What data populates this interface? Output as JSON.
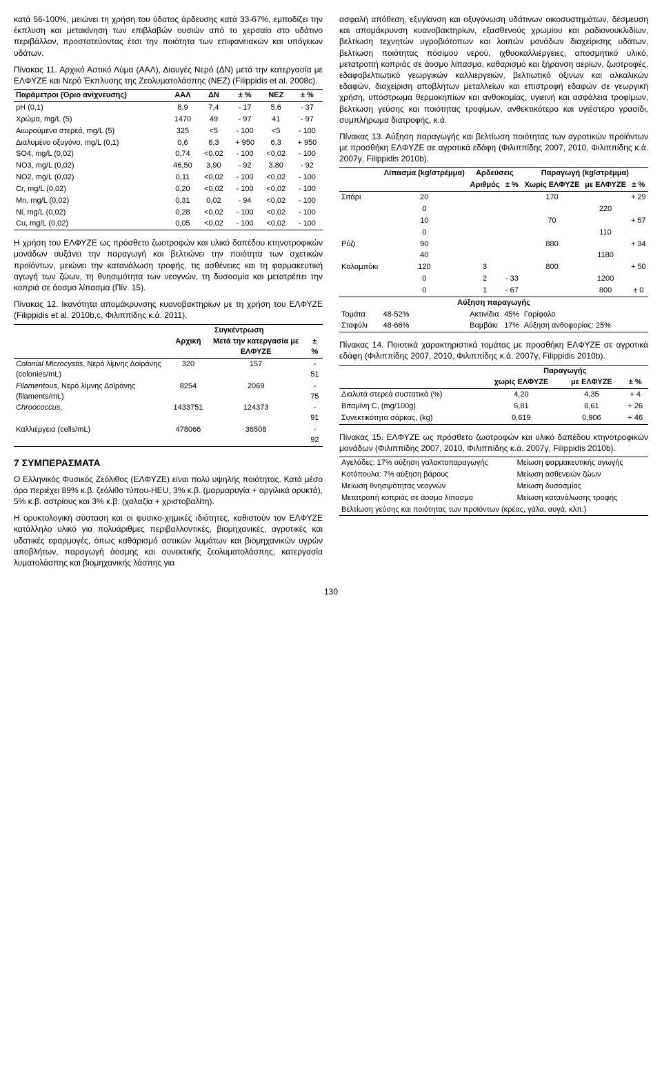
{
  "leftCol": {
    "para1": "κατά 56-100%, μειώνει τη χρήση του ύδατος άρδευσης κατά 33-67%, εμποδίζει την έκπλυση και μετακίνηση των επιβλαβών ουσιών από το χερσαίο στο υδάτινο περιβάλλον, προστατεύοντας έτσι την ποιότητα των επιφανειακών και υπόγειων υδάτων.",
    "table11_caption": "Πίνακας 11. Αρχικό Αστικό Λύμα (ΑΑΛ), Διαυγές Νερό (ΔΝ) μετά την κατεργασία με ΕΛΦΥΖΕ και Νερό Έκπλυσης της Ζεολυματολάσπης (ΝΕΖ) (Filippidis et al. 2008c).",
    "table11": {
      "head": [
        "Παράμετροι (Όριο ανίχνευσης)",
        "ΑΑΛ",
        "ΔΝ",
        "± %",
        "ΝΕΖ",
        "± %"
      ],
      "rows": [
        [
          "pH (0,1)",
          "8,9",
          "7,4",
          "- 17",
          "5,6",
          "- 37"
        ],
        [
          "Χρώμα, mg/L (5)",
          "1470",
          "49",
          "- 97",
          "41",
          "- 97"
        ],
        [
          "Αιωρούμενα στερεά, mg/L (5)",
          "325",
          "<5",
          "- 100",
          "<5",
          "- 100"
        ],
        [
          "Διαλυμένο οξυγόνο, mg/L (0,1)",
          "0,6",
          "6,3",
          "+ 950",
          "6,3",
          "+ 950"
        ],
        [
          "SO4, mg/L (0,02)",
          "0,74",
          "<0,02",
          "- 100",
          "<0,02",
          "- 100"
        ],
        [
          "NO3, mg/L (0,02)",
          "46,50",
          "3,90",
          "- 92",
          "3,80",
          "- 92"
        ],
        [
          "NO2, mg/L (0,02)",
          "0,11",
          "<0,02",
          "- 100",
          "<0,02",
          "- 100"
        ],
        [
          "Cr, mg/L (0,02)",
          "0,20",
          "<0,02",
          "- 100",
          "<0,02",
          "- 100"
        ],
        [
          "Mn, mg/L (0,02)",
          "0,31",
          "0,02",
          "- 94",
          "<0,02",
          "- 100"
        ],
        [
          "Ni, mg/L (0,02)",
          "0,28",
          "<0,02",
          "- 100",
          "<0,02",
          "- 100"
        ],
        [
          "Cu, mg/L (0,02)",
          "0,05",
          "<0,02",
          "- 100",
          "<0,02",
          "- 100"
        ]
      ]
    },
    "para2": "Η χρήση του ΕΛΦΥΖΕ ως πρόσθετο ζωοτροφών και υλικό δαπέδου κτηνοτροφικών μονάδων αυξάνει την παραγωγή και βελτιώνει την ποιότητα των σχετικών προϊόντων, μειώνει την κατανάλωση τροφής, τις ασθένειες και τη φαρμακευτική αγωγή των ζώων, τη θνησιμότητα των νεογνών, τη δυσοσμία και μετατρέπει την κοπριά σε άοσμο λίπασμα (Πίν. 15).",
    "table12_caption": "Πίνακας 12. Ικανότητα απομάκρυνσης κυανοβακτηρίων με τη χρήση του ΕΛΦΥΖΕ (Filippidis et al. 2010b,c, Φιλιππίδης κ.ά. 2011).",
    "table12": {
      "head_top": [
        "",
        "Συγκέντρωση",
        ""
      ],
      "head": [
        "",
        "Αρχική",
        "Μετά την κατεργασία με ΕΛΦΥΖΕ",
        "± %"
      ],
      "rows": [
        [
          "Colonial Microcystis, Νερό λίμνης Δοϊράνης (colonies/mL)",
          "320",
          "157",
          "- 51"
        ],
        [
          "Filamentous, Νερό λίμνης Δοϊράνης (filaments/mL)",
          "8254",
          "2069",
          "- 75"
        ],
        [
          "Chroococcus,",
          "1433751",
          "124373",
          "- 91"
        ],
        [
          "Καλλιέργεια (cells/mL)",
          "478066",
          "36508",
          "- 92"
        ]
      ]
    },
    "section_heading": "7   ΣΥΜΠΕΡΑΣΜΑΤΑ"
  },
  "rightCol": {
    "para1": "ασφαλή απόθεση, εξυγίανση και οξυγόνωση υδάτινων οικοσυστημάτων, δέσμευση και απομάκρυνση κυανοβακτηρίων, εξασθενούς χρωμίου και ραδιονουκλιδίων, βελτίωση τεχνητών υγροβιότοπων και λοιπών μονάδων διαχείρισης υδάτων, βελτίωση ποιότητας πόσιμου νερού, ιχθυοκαλλιέργειες, αποσμητικό υλικό, μετατροπή κοπριάς σε άοσμο λίπασμα, καθαρισμό και ξήρανση αερίων, ζωοτροφές, εδαφοβελτιωτικό γεωργικών καλλιεργειών, βελτιωτικό όξινων και αλκαλικών εδαφών, διαχείριση αποβλήτων μεταλλείων και επιστροφή εδαφών σε γεωργική χρήση, υπόστρωμα θερμοκηπίων και ανθοκομίας, υγιεινή και ασφάλεια τροφίμων, βελτίωση γεύσης και ποιότητας τροφίμων, ανθεκτικότερο και υγιέστερο γρασίδι, συμπλήρωμα διατροφής, κ.ά.",
    "table13_caption": "Πίνακας 13. Αύξηση παραγωγής και βελτίωση ποιότητας των αγροτικών προϊόντων με προσθήκη ΕΛΦΥΖΕ σε αγροτικά εδάφη (Φιλιππίδης 2007, 2010, Φιλιππίδης κ.ά. 2007γ, Filippidis 2010b).",
    "table13": {
      "head_top": [
        "",
        "Λίπασμα (kg/στρέμμα)",
        "Αρδεύσεις",
        "Παραγωγή (kg/στρέμμα)"
      ],
      "head": [
        "",
        "",
        "Αριθμός",
        "± %",
        "Χωρίς ΕΛΦΥΖΕ",
        "με ΕΛΦΥΖΕ",
        "± %"
      ],
      "blocks": [
        {
          "crop": "Σιτάρι",
          "rows": [
            [
              "20",
              "",
              "",
              "170",
              "",
              "+ 29"
            ],
            [
              "0",
              "",
              "",
              "",
              "220",
              ""
            ],
            [
              "10",
              "",
              "",
              "70",
              "",
              "+ 57"
            ],
            [
              "0",
              "",
              "",
              "",
              "110",
              ""
            ]
          ]
        },
        {
          "crop": "Ρύζι",
          "rows": [
            [
              "90",
              "",
              "",
              "880",
              "",
              "+ 34"
            ],
            [
              "40",
              "",
              "",
              "",
              "1180",
              ""
            ]
          ]
        },
        {
          "crop": "Καλαμπόκι",
          "rows": [
            [
              "120",
              "3",
              "",
              "800",
              "",
              "+ 50"
            ],
            [
              "0",
              "2",
              "- 33",
              "",
              "1200",
              ""
            ],
            [
              "0",
              "1",
              "- 67",
              "",
              "800",
              "± 0"
            ]
          ]
        }
      ],
      "aux_head": "Αύξηση παραγωγής",
      "aux_rows": [
        [
          "Τομάτα",
          "48-52%",
          "Ακτινίδια",
          "45%",
          "Γαρίφαλο"
        ],
        [
          "Σταφύλι",
          "48-66%",
          "Βαμβάκι",
          "17%",
          "Αύξηση ανθοφορίας: 25%"
        ]
      ]
    },
    "table14_caption": "Πίνακας 14. Ποιοτικά χαρακτηριστικά τομάτας με προσθήκη ΕΛΦΥΖΕ σε αγροτικά εδάφη (Φιλιππίδης 2007, 2010, Φιλιππίδης κ.ά. 2007γ, Filippidis 2010b).",
    "table14": {
      "head_top": "Παραγωγής",
      "head": [
        "",
        "χωρίς ΕΛΦΥΖΕ",
        "με ΕΛΦΥΖΕ",
        "± %"
      ],
      "rows": [
        [
          "Διαλυτά στερεά συστατικά (%)",
          "4,20",
          "4,35",
          "+ 4"
        ],
        [
          "Βιταμίνη C, (mg/100g)",
          "6,81",
          "8,61",
          "+ 26"
        ],
        [
          "Συνεκτικότητα σάρκας, (kg)",
          "0,619",
          "0,906",
          "+ 46"
        ]
      ]
    },
    "table15_caption": "Πίνακας 15. ΕΛΦΥΖΕ ως πρόσθετο ζωοτροφών και υλικό δαπέδου κτηνοτροφικών μονάδων (Φιλιππίδης 2007, 2010, Φιλιππίδης κ.ά. 2007γ, Filippidis 2010b).",
    "table15_rows": [
      [
        "Αγελάδες: 17% αύξηση γαλακτοπαραγωγής",
        "Μείωση φαρμακευτικής αγωγής"
      ],
      [
        "Κοτόπουλα: 7% αύξηση βάρους",
        "Μείωση ασθενειών ζώων"
      ],
      [
        "Μείωση θνησιμότητας νεογνών",
        "Μείωση δυσοσμίας"
      ],
      [
        "Μετατροπή κοπριάς σε άοσμο λίπασμα",
        "Μείωση κατανάλωσης τροφής"
      ],
      [
        "Βελτίωση γεύσης και ποιότητας των προϊόντων (κρέας, γάλα, αυγά, κλπ.)",
        ""
      ]
    ]
  },
  "fullWidth": {
    "para1": "Ο Ελληνικός Φυσικός Ζεόλιθος (ΕΛΦΥΖΕ) είναι πολύ υψηλής ποιότητας. Κατά μέσο όρο περιέχει 89% κ.β. ζεόλιθο τύπου-HEU, 3% κ.β. (μαρμαρυγία + αργιλικά ορυκτά), 5% κ.β. αστρίους και 3% κ.β. (χαλαζία + χριστοβαλίτη).",
    "para2": "Η ορυκτολογική σύσταση και οι φυσικο-χημικές ιδιότητες, καθιστούν τον ΕΛΦΥΖΕ κατάλληλο υλικό για πολυάριθμες περιβαλλοντικές, βιομηχανικές, αγροτικές και υδατικές εφαρμογές, όπως καθαρισμό αστικών λυμάτων και βιομηχανικών υγρών αποβλήτων, παραγωγή άοσμης και συνεκτικής ζεολυματολάσπης, κατεργασία λυματολάσπης και βιομηχανικής λάσπης για"
  },
  "pageNumber": "130"
}
